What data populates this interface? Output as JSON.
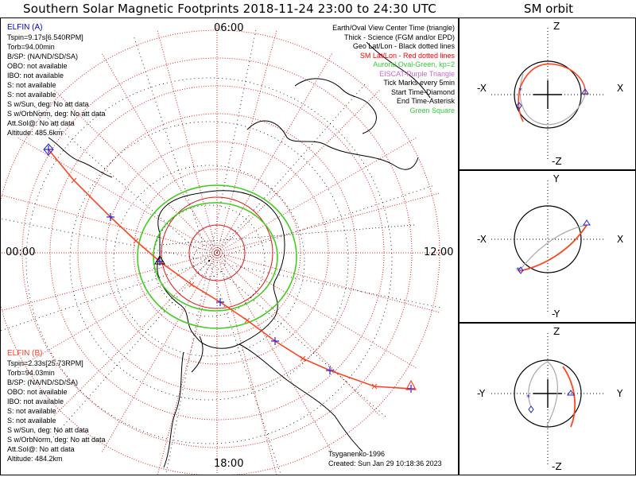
{
  "title": "Southern Solar Magnetic Footprints 2018-11-24 23:00 to 24:30 UTC",
  "orbit_title": "SM orbit",
  "map": {
    "hour_labels": {
      "top": "06:00",
      "left": "00:00",
      "right": "12:00",
      "bottom": "18:00"
    },
    "legend": [
      {
        "text": "Earth/Oval View Center Time (triangle)",
        "color": "#000000"
      },
      {
        "text": "Thick - Science (FGM and/or EPD)",
        "color": "#000000"
      },
      {
        "text": "Geo Lat/Lon - Black dotted lines",
        "color": "#000000"
      },
      {
        "text": "SM Lat/Lon - Red dotted lines",
        "color": "#ff0000"
      },
      {
        "text": "Auroral Oval-Green, kp=2",
        "color": "#33cc33"
      },
      {
        "text": "EISCAT-Purple Triangle",
        "color": "#cc66cc"
      },
      {
        "text": "Tick Marks every 5min",
        "color": "#000000"
      },
      {
        "text": "Start Time-Diamond",
        "color": "#000000"
      },
      {
        "text": "End Time-Asterisk",
        "color": "#000000"
      },
      {
        "text": "Green Square",
        "color": "#33cc33"
      }
    ],
    "elfin_a": {
      "name": "ELFIN (A)",
      "color": "#0000cc",
      "lines": [
        "Tspin=9.17s[6.540RPM]",
        "Torb=94.00min",
        "B/SP: (NA/ND/SD/SA)",
        "OBO: not available",
        "IBO: not available",
        "S: not available",
        "S: not available",
        "S w/Sun, deg: No att data",
        "S w/OrbNorm, deg: No att data",
        "Att.Sol@: No att data",
        "Altitude: 485.6km"
      ]
    },
    "elfin_b": {
      "name": "ELFIN (B)",
      "color": "#ff4422",
      "lines": [
        "Tspin=2.33s[25.73RPM]",
        "Torb=94.03min",
        "B/SP: (NA/ND/SD/SA)",
        "OBO: not available",
        "IBO: not available",
        "S: not available",
        "S: not available",
        "S w/Sun, deg: No att data",
        "S w/OrbNorm, deg: No att data",
        "Att.Sol@: No att data",
        "Altitude: 484.2km"
      ]
    },
    "credit": "Tsyganenko-1996",
    "created": "Created: Sun Jan 29 10:18:36 2023",
    "colors": {
      "grid_red": "#dd2222",
      "grid_black": "#000000",
      "oval_green": "#44cc22",
      "track_a": "#2222cc",
      "track_b": "#ff4422"
    }
  },
  "orbit_panels": [
    {
      "id": "xz",
      "top": "Z",
      "bottom": "-Z",
      "left": "-X",
      "right": "X"
    },
    {
      "id": "xy",
      "top": "Y",
      "bottom": "-Y",
      "left": "-X",
      "right": "X"
    },
    {
      "id": "yz",
      "top": "Z",
      "bottom": "-Z",
      "left": "-Y",
      "right": "Y"
    }
  ]
}
